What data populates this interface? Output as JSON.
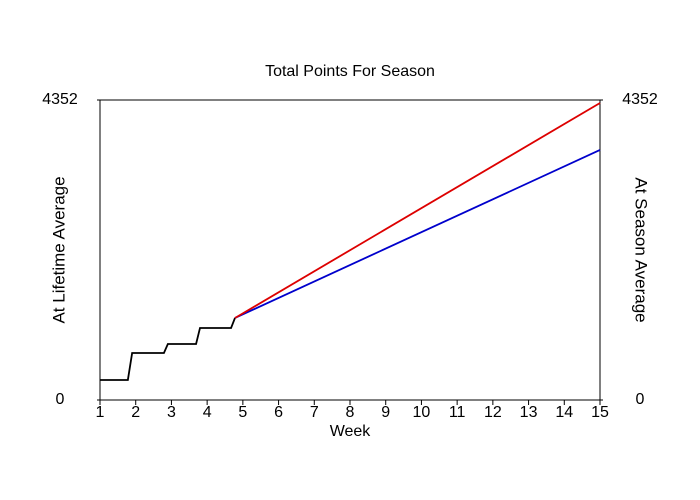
{
  "chart_data": {
    "type": "line",
    "title": "Total Points For Season",
    "xlabel": "Week",
    "ylabel": "At Lifetime Average",
    "y2label": "At Season Average",
    "ylabel_color": "#0000cc",
    "y2label_color": "#dd0000",
    "xlim": [
      1,
      15
    ],
    "xticks": [
      1,
      2,
      3,
      4,
      5,
      6,
      7,
      8,
      9,
      10,
      11,
      12,
      13,
      14,
      15
    ],
    "ylim": [
      0,
      4352
    ],
    "yticks": [
      0,
      4352
    ],
    "y2lim": [
      0,
      4352
    ],
    "y2ticks": [
      0,
      4352
    ],
    "series": [
      {
        "color": "#000000",
        "x": [
          1,
          1.78,
          1.9,
          2.79,
          2.9,
          3.69,
          3.8,
          4.67,
          4.78
        ],
        "values": [
          290,
          290,
          682,
          682,
          812,
          812,
          1045,
          1045,
          1190
        ]
      },
      {
        "color": "#0000cc",
        "x": [
          4.78,
          15
        ],
        "values": [
          1190,
          3627
        ]
      },
      {
        "color": "#dd0000",
        "x": [
          4.78,
          15
        ],
        "values": [
          1190,
          4309
        ],
        "axis": "y2"
      }
    ]
  }
}
